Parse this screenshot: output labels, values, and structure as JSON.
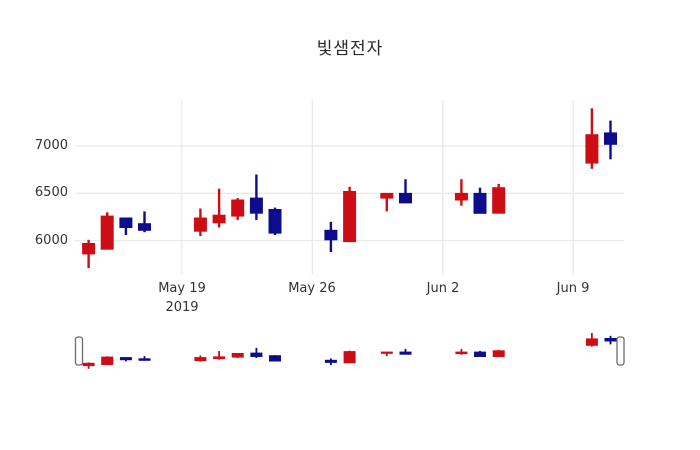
{
  "colors": {
    "increasing": "#CC0E14",
    "decreasing": "#0D0D8C",
    "grid": "#E8E8E8",
    "axis_text": "#333333",
    "background": "#FFFFFF",
    "slider_handle_border": "#6B6B6B"
  },
  "y_axis": {
    "tick_labels": [
      "7000",
      "6500",
      "6000"
    ]
  },
  "x_axis": {
    "tick_labels": [
      {
        "line1": "May 19",
        "line2": "2019"
      },
      {
        "line1": "May 26"
      },
      {
        "line1": "Jun 2"
      },
      {
        "line1": "Jun 9"
      }
    ]
  },
  "chart_data": {
    "type": "candlestick",
    "title": "빛샘전자",
    "xlabel": "",
    "ylabel": "",
    "yticks": [
      6000,
      6500,
      7000
    ],
    "ylim": [
      5670,
      7490
    ],
    "x_tick_dates": [
      "2019-05-19",
      "2019-05-26",
      "2019-06-02",
      "2019-06-09"
    ],
    "grid": true,
    "legend": false,
    "rangeslider_visible": true,
    "increasing_color": "#CC0E14",
    "decreasing_color": "#0D0D8C",
    "candles": [
      {
        "date": "2019-05-14",
        "open": 5860,
        "high": 6010,
        "low": 5710,
        "close": 5970
      },
      {
        "date": "2019-05-15",
        "open": 5910,
        "high": 6300,
        "low": 5910,
        "close": 6260
      },
      {
        "date": "2019-05-16",
        "open": 6240,
        "high": 6240,
        "low": 6060,
        "close": 6140
      },
      {
        "date": "2019-05-17",
        "open": 6180,
        "high": 6310,
        "low": 6090,
        "close": 6110
      },
      {
        "date": "2019-05-20",
        "open": 6100,
        "high": 6340,
        "low": 6050,
        "close": 6240
      },
      {
        "date": "2019-05-21",
        "open": 6190,
        "high": 6550,
        "low": 6140,
        "close": 6270
      },
      {
        "date": "2019-05-22",
        "open": 6260,
        "high": 6450,
        "low": 6220,
        "close": 6430
      },
      {
        "date": "2019-05-23",
        "open": 6450,
        "high": 6700,
        "low": 6220,
        "close": 6290
      },
      {
        "date": "2019-05-24",
        "open": 6330,
        "high": 6350,
        "low": 6060,
        "close": 6080
      },
      {
        "date": "2019-05-27",
        "open": 6110,
        "high": 6200,
        "low": 5880,
        "close": 6010
      },
      {
        "date": "2019-05-28",
        "open": 5990,
        "high": 6570,
        "low": 5990,
        "close": 6520
      },
      {
        "date": "2019-05-30",
        "open": 6450,
        "high": 6500,
        "low": 6310,
        "close": 6500
      },
      {
        "date": "2019-05-31",
        "open": 6500,
        "high": 6650,
        "low": 6400,
        "close": 6400
      },
      {
        "date": "2019-06-03",
        "open": 6430,
        "high": 6650,
        "low": 6370,
        "close": 6500
      },
      {
        "date": "2019-06-04",
        "open": 6500,
        "high": 6560,
        "low": 6290,
        "close": 6290
      },
      {
        "date": "2019-06-05",
        "open": 6290,
        "high": 6600,
        "low": 6290,
        "close": 6560
      },
      {
        "date": "2019-06-10",
        "open": 6820,
        "high": 7400,
        "low": 6760,
        "close": 7120
      },
      {
        "date": "2019-06-11",
        "open": 7140,
        "high": 7270,
        "low": 6860,
        "close": 7020
      }
    ]
  }
}
